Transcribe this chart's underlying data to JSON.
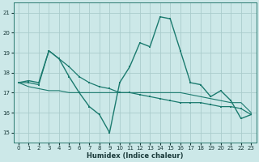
{
  "xlabel": "Humidex (Indice chaleur)",
  "background_color": "#cce8e8",
  "grid_color": "#aacccc",
  "line_color": "#1a7a6e",
  "xlim": [
    -0.5,
    23.5
  ],
  "ylim": [
    14.5,
    21.5
  ],
  "yticks": [
    15,
    16,
    17,
    18,
    19,
    20,
    21
  ],
  "xticks": [
    0,
    1,
    2,
    3,
    4,
    5,
    6,
    7,
    8,
    9,
    10,
    11,
    12,
    13,
    14,
    15,
    16,
    17,
    18,
    19,
    20,
    21,
    22,
    23
  ],
  "series1_y": [
    17.5,
    17.6,
    17.5,
    19.1,
    18.7,
    17.8,
    17.0,
    16.3,
    15.9,
    15.0,
    17.5,
    18.3,
    19.5,
    19.3,
    20.8,
    20.7,
    19.1,
    17.5,
    17.4,
    16.8,
    17.1,
    16.6,
    15.7,
    15.9
  ],
  "series2_y": [
    17.5,
    17.5,
    17.4,
    19.1,
    18.7,
    18.3,
    17.8,
    17.5,
    17.3,
    17.2,
    17.0,
    17.0,
    16.9,
    16.8,
    16.7,
    16.6,
    16.5,
    16.5,
    16.5,
    16.4,
    16.3,
    16.3,
    16.2,
    15.9
  ],
  "series3_y": [
    17.5,
    17.3,
    17.2,
    17.1,
    17.1,
    17.0,
    17.0,
    17.0,
    17.0,
    17.0,
    17.0,
    17.0,
    17.0,
    17.0,
    17.0,
    17.0,
    17.0,
    16.9,
    16.8,
    16.7,
    16.6,
    16.5,
    16.5,
    16.0
  ]
}
